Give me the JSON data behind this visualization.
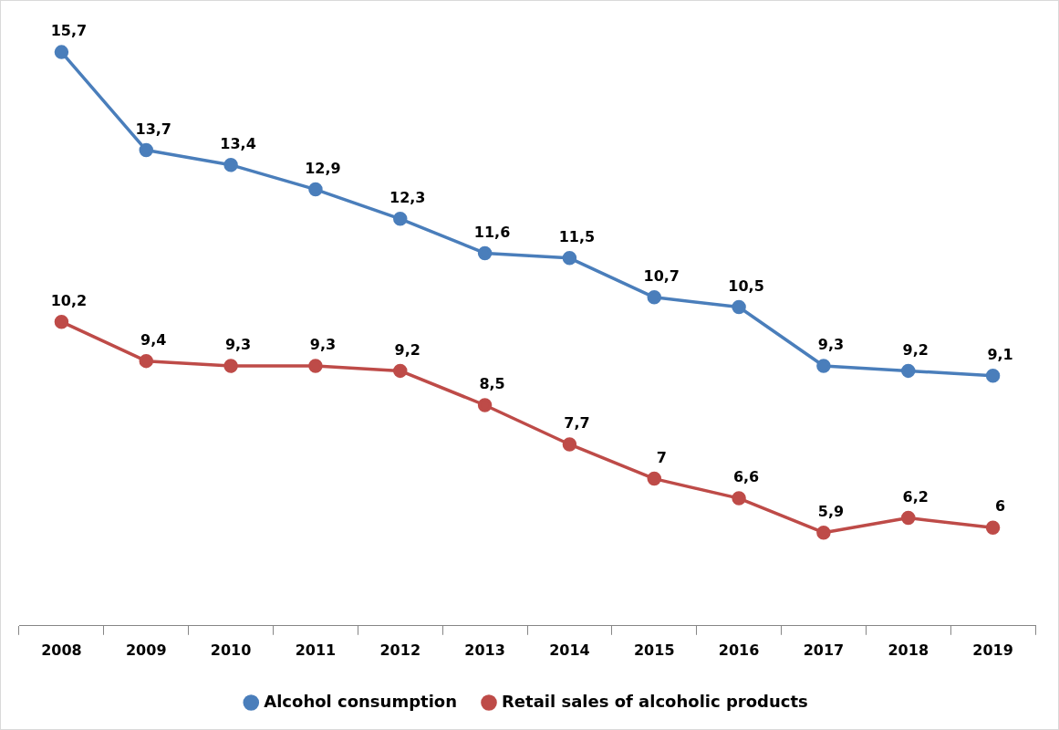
{
  "chart_data": {
    "type": "line",
    "categories": [
      "2008",
      "2009",
      "2010",
      "2011",
      "2012",
      "2013",
      "2014",
      "2015",
      "2016",
      "2017",
      "2018",
      "2019"
    ],
    "series": [
      {
        "name": "Alcohol consumption",
        "color": "#4a7ebb",
        "values": [
          15.7,
          13.7,
          13.4,
          12.9,
          12.3,
          11.6,
          11.5,
          10.7,
          10.5,
          9.3,
          9.2,
          9.1
        ],
        "value_labels": [
          "15,7",
          "13,7",
          "13,4",
          "12,9",
          "12,3",
          "11,6",
          "11,5",
          "10,7",
          "10,5",
          "9,3",
          "9,2",
          "9,1"
        ]
      },
      {
        "name": "Retail sales of alcoholic products",
        "color": "#be4b48",
        "values": [
          10.2,
          9.4,
          9.3,
          9.3,
          9.2,
          8.5,
          7.7,
          7,
          6.6,
          5.9,
          6.2,
          6
        ],
        "value_labels": [
          "10,2",
          "9,4",
          "9,3",
          "9,3",
          "9,2",
          "8,5",
          "7,7",
          "7",
          "6,6",
          "5,9",
          "6,2",
          "6"
        ]
      }
    ],
    "tick_labels": "x",
    "marker": "circle",
    "line_style": "solid",
    "legend": "bottom",
    "grid": false
  }
}
